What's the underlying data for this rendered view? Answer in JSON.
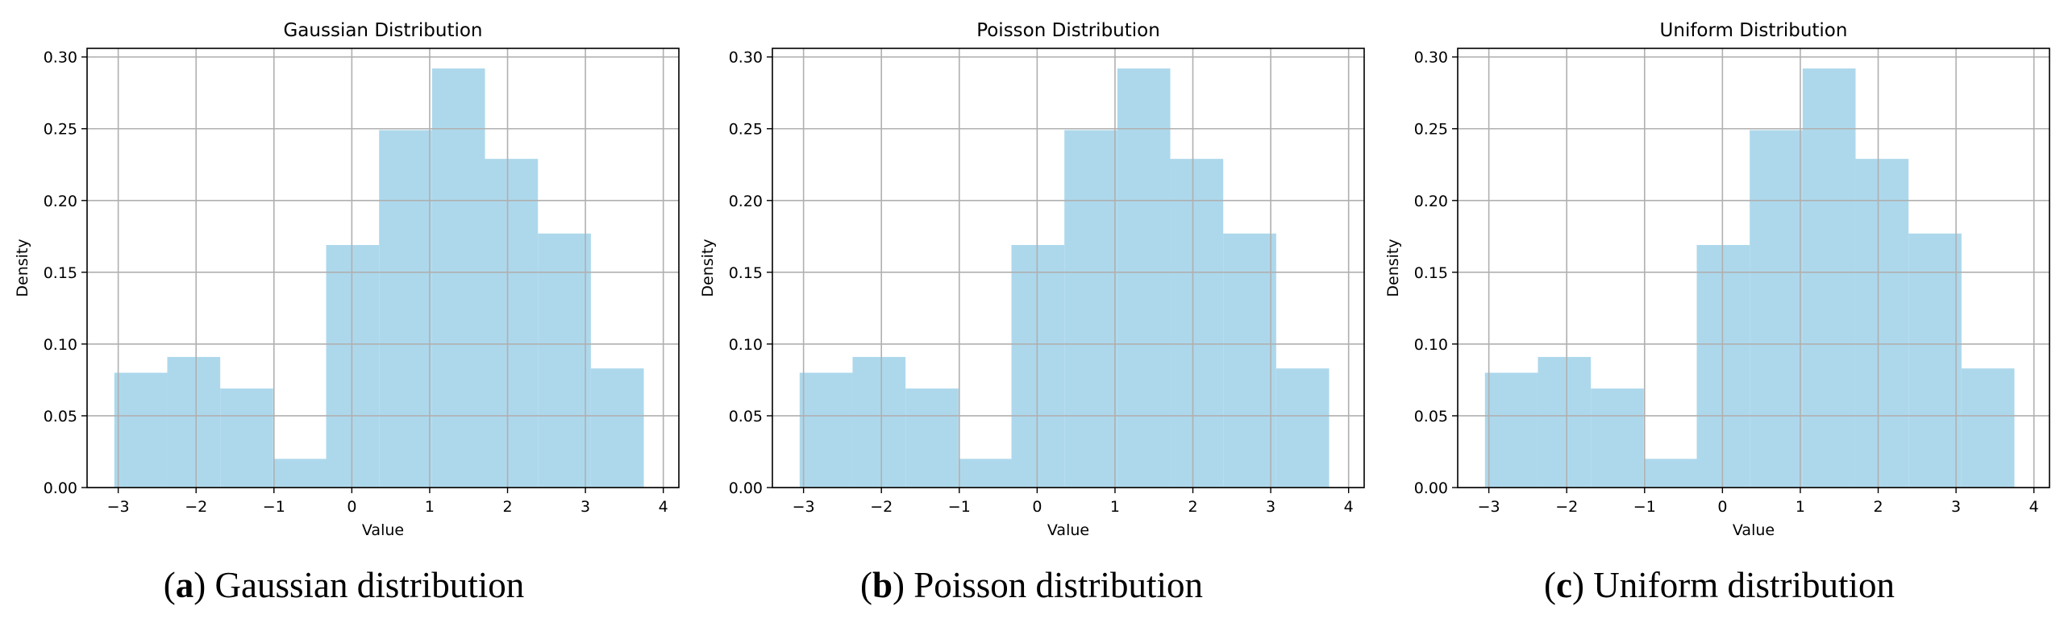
{
  "colors": {
    "bar_fill": "#add8ec",
    "grid": "#b0b0b0",
    "axis": "#000000",
    "text": "#000000"
  },
  "chart_data": [
    {
      "type": "bar",
      "title": "Gaussian Distribution",
      "xlabel": "Value",
      "ylabel": "Density",
      "xlim": [
        -3.4,
        4.2
      ],
      "ylim": [
        0,
        0.306
      ],
      "grid": true,
      "xticks": [
        -3,
        -2,
        -1,
        0,
        1,
        2,
        3,
        4
      ],
      "xtick_labels": [
        "−3",
        "−2",
        "−1",
        "0",
        "1",
        "2",
        "3",
        "4"
      ],
      "yticks": [
        0,
        0.05,
        0.1,
        0.15,
        0.2,
        0.25,
        0.3
      ],
      "ytick_labels": [
        "0.00",
        "0.05",
        "0.10",
        "0.15",
        "0.20",
        "0.25",
        "0.30"
      ],
      "bin_edges": [
        -3.05,
        -2.37,
        -1.69,
        -1.01,
        -0.33,
        0.35,
        1.03,
        1.71,
        2.39,
        3.07,
        3.75
      ],
      "values": [
        0.08,
        0.091,
        0.069,
        0.02,
        0.169,
        0.249,
        0.292,
        0.229,
        0.177,
        0.083
      ]
    },
    {
      "type": "bar",
      "title": "Poisson Distribution",
      "xlabel": "Value",
      "ylabel": "Density",
      "xlim": [
        -3.4,
        4.2
      ],
      "ylim": [
        0,
        0.306
      ],
      "grid": true,
      "xticks": [
        -3,
        -2,
        -1,
        0,
        1,
        2,
        3,
        4
      ],
      "xtick_labels": [
        "−3",
        "−2",
        "−1",
        "0",
        "1",
        "2",
        "3",
        "4"
      ],
      "yticks": [
        0,
        0.05,
        0.1,
        0.15,
        0.2,
        0.25,
        0.3
      ],
      "ytick_labels": [
        "0.00",
        "0.05",
        "0.10",
        "0.15",
        "0.20",
        "0.25",
        "0.30"
      ],
      "bin_edges": [
        -3.05,
        -2.37,
        -1.69,
        -1.01,
        -0.33,
        0.35,
        1.03,
        1.71,
        2.39,
        3.07,
        3.75
      ],
      "values": [
        0.08,
        0.091,
        0.069,
        0.02,
        0.169,
        0.249,
        0.292,
        0.229,
        0.177,
        0.083
      ]
    },
    {
      "type": "bar",
      "title": "Uniform Distribution",
      "xlabel": "Value",
      "ylabel": "Density",
      "xlim": [
        -3.4,
        4.2
      ],
      "ylim": [
        0,
        0.306
      ],
      "grid": true,
      "xticks": [
        -3,
        -2,
        -1,
        0,
        1,
        2,
        3,
        4
      ],
      "xtick_labels": [
        "−3",
        "−2",
        "−1",
        "0",
        "1",
        "2",
        "3",
        "4"
      ],
      "yticks": [
        0,
        0.05,
        0.1,
        0.15,
        0.2,
        0.25,
        0.3
      ],
      "ytick_labels": [
        "0.00",
        "0.05",
        "0.10",
        "0.15",
        "0.20",
        "0.25",
        "0.30"
      ],
      "bin_edges": [
        -3.05,
        -2.37,
        -1.69,
        -1.01,
        -0.33,
        0.35,
        1.03,
        1.71,
        2.39,
        3.07,
        3.75
      ],
      "values": [
        0.08,
        0.091,
        0.069,
        0.02,
        0.169,
        0.249,
        0.292,
        0.229,
        0.177,
        0.083
      ]
    }
  ],
  "captions": [
    {
      "letter": "a",
      "text": "Gaussian distribution"
    },
    {
      "letter": "b",
      "text": "Poisson distribution"
    },
    {
      "letter": "c",
      "text": "Uniform distribution"
    }
  ]
}
